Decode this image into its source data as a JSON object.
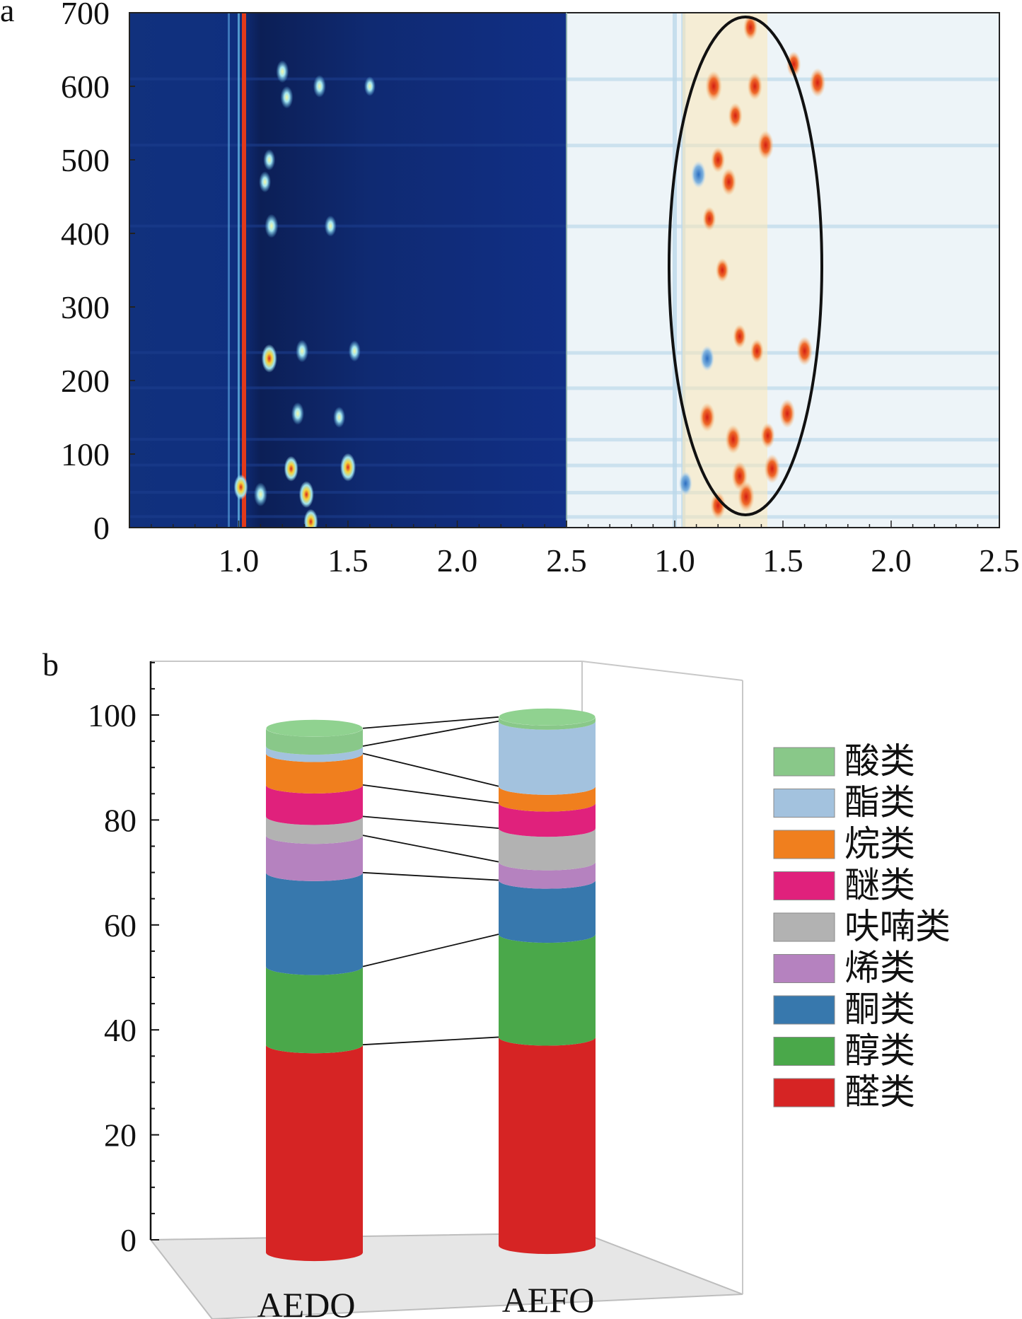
{
  "chart_data": [
    {
      "type": "heatmap",
      "panel_label": "a",
      "panels": [
        "left",
        "right"
      ],
      "y_ticks": [
        "0",
        "100",
        "200",
        "300",
        "400",
        "500",
        "600",
        "700"
      ],
      "ylim": [
        0,
        700
      ],
      "x_ticks_left": [
        "1.0",
        "1.5",
        "2.0",
        "2.5"
      ],
      "x_ticks_right": [
        "1.0",
        "1.5",
        "2.0",
        "2.5"
      ],
      "xlim": [
        0.5,
        2.5
      ],
      "left_spots": [
        {
          "x": 1.01,
          "y": 55,
          "v": 0.8
        },
        {
          "x": 1.1,
          "y": 45,
          "v": 0.7
        },
        {
          "x": 1.14,
          "y": 230,
          "v": 1.0
        },
        {
          "x": 1.15,
          "y": 410,
          "v": 0.7
        },
        {
          "x": 1.2,
          "y": 620,
          "v": 0.6
        },
        {
          "x": 1.22,
          "y": 585,
          "v": 0.6
        },
        {
          "x": 1.24,
          "y": 80,
          "v": 0.8
        },
        {
          "x": 1.27,
          "y": 155,
          "v": 0.6
        },
        {
          "x": 1.29,
          "y": 240,
          "v": 0.6
        },
        {
          "x": 1.31,
          "y": 45,
          "v": 0.9
        },
        {
          "x": 1.33,
          "y": 8,
          "v": 0.8
        },
        {
          "x": 1.37,
          "y": 600,
          "v": 0.6
        },
        {
          "x": 1.42,
          "y": 410,
          "v": 0.5
        },
        {
          "x": 1.46,
          "y": 150,
          "v": 0.5
        },
        {
          "x": 1.5,
          "y": 82,
          "v": 1.0
        },
        {
          "x": 1.53,
          "y": 240,
          "v": 0.5
        },
        {
          "x": 1.6,
          "y": 600,
          "v": 0.4
        },
        {
          "x": 1.14,
          "y": 500,
          "v": 0.5
        },
        {
          "x": 1.12,
          "y": 470,
          "v": 0.5
        }
      ],
      "right_spots": [
        {
          "x": 1.15,
          "y": 150,
          "v": 0.9
        },
        {
          "x": 1.16,
          "y": 420,
          "v": 0.6
        },
        {
          "x": 1.18,
          "y": 600,
          "v": 1.0
        },
        {
          "x": 1.2,
          "y": 500,
          "v": 0.7
        },
        {
          "x": 1.2,
          "y": 30,
          "v": 0.8
        },
        {
          "x": 1.22,
          "y": 350,
          "v": 0.6
        },
        {
          "x": 1.25,
          "y": 470,
          "v": 0.8
        },
        {
          "x": 1.27,
          "y": 120,
          "v": 0.9
        },
        {
          "x": 1.28,
          "y": 560,
          "v": 0.7
        },
        {
          "x": 1.3,
          "y": 70,
          "v": 0.9
        },
        {
          "x": 1.3,
          "y": 260,
          "v": 0.6
        },
        {
          "x": 1.33,
          "y": 42,
          "v": 1.0
        },
        {
          "x": 1.35,
          "y": 680,
          "v": 0.7
        },
        {
          "x": 1.37,
          "y": 600,
          "v": 0.8
        },
        {
          "x": 1.38,
          "y": 240,
          "v": 0.6
        },
        {
          "x": 1.42,
          "y": 520,
          "v": 0.9
        },
        {
          "x": 1.43,
          "y": 125,
          "v": 0.7
        },
        {
          "x": 1.45,
          "y": 80,
          "v": 0.9
        },
        {
          "x": 1.52,
          "y": 155,
          "v": 0.9
        },
        {
          "x": 1.55,
          "y": 630,
          "v": 0.7
        },
        {
          "x": 1.6,
          "y": 240,
          "v": 0.9
        },
        {
          "x": 1.66,
          "y": 605,
          "v": 0.9
        },
        {
          "x": 1.11,
          "y": 480,
          "v": -0.8
        },
        {
          "x": 1.15,
          "y": 230,
          "v": -0.7
        },
        {
          "x": 1.05,
          "y": 60,
          "v": -0.6
        }
      ],
      "marked_region": "ellipse"
    },
    {
      "type": "bar",
      "stacked": true,
      "panel_label": "b",
      "categories": [
        "AEDO",
        "AEFO"
      ],
      "ylim": [
        0,
        110
      ],
      "y_ticks": [
        "0",
        "20",
        "40",
        "60",
        "80",
        "100"
      ],
      "legend_position": "right",
      "series": [
        {
          "name": "醛类",
          "color": "#d62424",
          "values": [
            39.6,
            39.7
          ]
        },
        {
          "name": "醇类",
          "color": "#4aa84a",
          "values": [
            14.9,
            19.6
          ]
        },
        {
          "name": "酮类",
          "color": "#3778ad",
          "values": [
            17.9,
            10.3
          ]
        },
        {
          "name": "烯类",
          "color": "#b582bf",
          "values": [
            7.1,
            3.5
          ]
        },
        {
          "name": "呋喃类",
          "color": "#b2b2b2",
          "values": [
            3.6,
            6.4
          ]
        },
        {
          "name": "醚类",
          "color": "#e0217c",
          "values": [
            6.0,
            4.8
          ]
        },
        {
          "name": "烷类",
          "color": "#f07f1e",
          "values": [
            6.0,
            3.2
          ]
        },
        {
          "name": "酯类",
          "color": "#a3c2de",
          "values": [
            1.4,
            12.4
          ]
        },
        {
          "name": "酸类",
          "color": "#89c889",
          "values": [
            3.4,
            0.8
          ]
        }
      ]
    }
  ]
}
